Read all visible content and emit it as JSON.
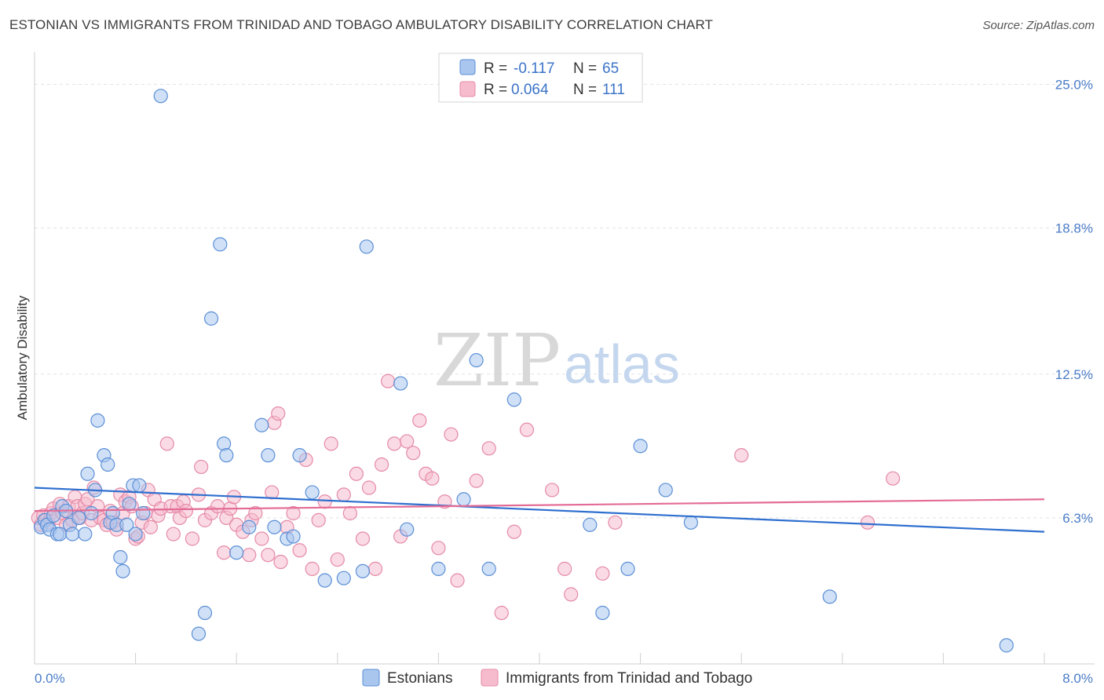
{
  "title": "ESTONIAN VS IMMIGRANTS FROM TRINIDAD AND TOBAGO AMBULATORY DISABILITY CORRELATION CHART",
  "source": "Source: ZipAtlas.com",
  "watermark": {
    "zip": "ZIP",
    "atlas": "atlas"
  },
  "colors": {
    "blue_fill": "#a9c6ee",
    "blue_stroke": "#5b8fd6",
    "blue_line": "#2f6fcf",
    "pink_fill": "#f6bccd",
    "pink_stroke": "#e58aa7",
    "pink_line": "#e36b96",
    "tick_text": "#4a7cc7",
    "grid": "#e2e2e2"
  },
  "legend": {
    "row1": {
      "r_label": "R =",
      "r_value": "-0.117",
      "n_label": "N =",
      "n_value": "65"
    },
    "row2": {
      "r_label": "R =",
      "r_value": "0.064",
      "n_label": "N =",
      "n_value": "111"
    }
  },
  "bottom_legend": {
    "series1": "Estonians",
    "series2": "Immigrants from Trinidad and Tobago"
  },
  "chart_data": {
    "type": "scatter",
    "title": "ESTONIAN VS IMMIGRANTS FROM TRINIDAD AND TOBAGO AMBULATORY DISABILITY CORRELATION CHART",
    "xlabel": "",
    "ylabel": "Ambulatory Disability",
    "xlim": [
      0.0,
      8.0
    ],
    "ylim": [
      0.0,
      26.0
    ],
    "x_tick_labels": [
      "0.0%",
      "8.0%"
    ],
    "y_ticks": [
      6.3,
      12.5,
      18.8,
      25.0
    ],
    "y_tick_labels": [
      "6.3%",
      "12.5%",
      "18.8%",
      "25.0%"
    ],
    "series": [
      {
        "name": "Estonians",
        "color": "#a9c6ee",
        "trend": {
          "x": [
            0.0,
            8.0
          ],
          "y": [
            7.6,
            5.7
          ]
        },
        "points": [
          [
            0.05,
            5.9
          ],
          [
            0.08,
            6.2
          ],
          [
            0.1,
            6.0
          ],
          [
            0.12,
            5.8
          ],
          [
            0.15,
            6.4
          ],
          [
            0.18,
            5.6
          ],
          [
            0.2,
            5.6
          ],
          [
            0.22,
            6.8
          ],
          [
            0.25,
            6.6
          ],
          [
            0.28,
            6.0
          ],
          [
            0.3,
            5.6
          ],
          [
            0.35,
            6.3
          ],
          [
            0.4,
            5.6
          ],
          [
            0.42,
            8.2
          ],
          [
            0.45,
            6.5
          ],
          [
            0.48,
            7.5
          ],
          [
            0.5,
            10.5
          ],
          [
            0.55,
            9.0
          ],
          [
            0.58,
            8.6
          ],
          [
            0.6,
            6.1
          ],
          [
            0.62,
            6.5
          ],
          [
            0.65,
            6.0
          ],
          [
            0.68,
            4.6
          ],
          [
            0.7,
            4.0
          ],
          [
            0.73,
            6.0
          ],
          [
            0.75,
            6.9
          ],
          [
            0.78,
            7.7
          ],
          [
            0.8,
            5.6
          ],
          [
            0.83,
            7.7
          ],
          [
            0.86,
            6.5
          ],
          [
            1.0,
            24.5
          ],
          [
            1.3,
            1.3
          ],
          [
            1.35,
            2.2
          ],
          [
            1.4,
            14.9
          ],
          [
            1.47,
            18.1
          ],
          [
            1.5,
            9.5
          ],
          [
            1.52,
            9.0
          ],
          [
            1.6,
            4.8
          ],
          [
            1.7,
            5.9
          ],
          [
            1.8,
            10.3
          ],
          [
            1.85,
            9.0
          ],
          [
            1.9,
            5.9
          ],
          [
            2.0,
            5.4
          ],
          [
            2.05,
            5.5
          ],
          [
            2.1,
            9.0
          ],
          [
            2.2,
            7.4
          ],
          [
            2.3,
            3.6
          ],
          [
            2.45,
            3.7
          ],
          [
            2.6,
            4.0
          ],
          [
            2.63,
            18.0
          ],
          [
            2.9,
            12.1
          ],
          [
            2.95,
            5.8
          ],
          [
            3.2,
            4.1
          ],
          [
            3.4,
            7.1
          ],
          [
            3.5,
            13.1
          ],
          [
            3.6,
            4.1
          ],
          [
            3.8,
            11.4
          ],
          [
            4.4,
            6.0
          ],
          [
            4.5,
            2.2
          ],
          [
            4.7,
            4.1
          ],
          [
            4.8,
            9.4
          ],
          [
            5.0,
            7.5
          ],
          [
            5.2,
            6.1
          ],
          [
            6.3,
            2.9
          ],
          [
            7.7,
            0.8
          ]
        ]
      },
      {
        "name": "Immigrants from Trinidad and Tobago",
        "color": "#f6bccd",
        "trend": {
          "x": [
            0.0,
            8.0
          ],
          "y": [
            6.6,
            7.1
          ]
        },
        "points": [
          [
            0.03,
            6.3
          ],
          [
            0.05,
            6.0
          ],
          [
            0.07,
            6.4
          ],
          [
            0.09,
            6.2
          ],
          [
            0.11,
            6.1
          ],
          [
            0.13,
            6.5
          ],
          [
            0.15,
            6.7
          ],
          [
            0.18,
            6.3
          ],
          [
            0.2,
            6.9
          ],
          [
            0.22,
            6.5
          ],
          [
            0.25,
            6.0
          ],
          [
            0.27,
            6.8
          ],
          [
            0.3,
            6.2
          ],
          [
            0.32,
            7.2
          ],
          [
            0.34,
            6.8
          ],
          [
            0.36,
            6.3
          ],
          [
            0.38,
            6.5
          ],
          [
            0.4,
            6.9
          ],
          [
            0.42,
            7.1
          ],
          [
            0.45,
            6.2
          ],
          [
            0.47,
            7.6
          ],
          [
            0.5,
            6.8
          ],
          [
            0.52,
            6.3
          ],
          [
            0.55,
            6.2
          ],
          [
            0.57,
            6.0
          ],
          [
            0.6,
            6.6
          ],
          [
            0.62,
            6.1
          ],
          [
            0.65,
            5.8
          ],
          [
            0.68,
            7.3
          ],
          [
            0.7,
            6.5
          ],
          [
            0.72,
            7.0
          ],
          [
            0.75,
            7.2
          ],
          [
            0.77,
            6.8
          ],
          [
            0.8,
            5.4
          ],
          [
            0.82,
            5.5
          ],
          [
            0.85,
            6.1
          ],
          [
            0.88,
            6.5
          ],
          [
            0.9,
            7.5
          ],
          [
            0.92,
            5.9
          ],
          [
            0.95,
            7.1
          ],
          [
            0.98,
            6.4
          ],
          [
            1.0,
            6.7
          ],
          [
            1.05,
            9.5
          ],
          [
            1.08,
            6.8
          ],
          [
            1.1,
            5.6
          ],
          [
            1.13,
            6.8
          ],
          [
            1.15,
            6.3
          ],
          [
            1.18,
            7.0
          ],
          [
            1.2,
            6.6
          ],
          [
            1.25,
            5.4
          ],
          [
            1.3,
            7.3
          ],
          [
            1.32,
            8.5
          ],
          [
            1.35,
            6.2
          ],
          [
            1.4,
            6.5
          ],
          [
            1.45,
            6.8
          ],
          [
            1.5,
            4.8
          ],
          [
            1.52,
            6.3
          ],
          [
            1.55,
            6.7
          ],
          [
            1.58,
            7.2
          ],
          [
            1.6,
            6.0
          ],
          [
            1.65,
            5.7
          ],
          [
            1.7,
            4.7
          ],
          [
            1.72,
            6.2
          ],
          [
            1.75,
            6.5
          ],
          [
            1.8,
            5.4
          ],
          [
            1.85,
            4.7
          ],
          [
            1.88,
            7.4
          ],
          [
            1.9,
            10.4
          ],
          [
            1.93,
            10.8
          ],
          [
            1.95,
            4.4
          ],
          [
            2.0,
            5.9
          ],
          [
            2.05,
            6.5
          ],
          [
            2.1,
            4.9
          ],
          [
            2.15,
            8.8
          ],
          [
            2.2,
            4.1
          ],
          [
            2.25,
            6.2
          ],
          [
            2.3,
            7.0
          ],
          [
            2.35,
            9.5
          ],
          [
            2.4,
            4.5
          ],
          [
            2.45,
            7.3
          ],
          [
            2.5,
            6.5
          ],
          [
            2.55,
            8.2
          ],
          [
            2.6,
            5.4
          ],
          [
            2.65,
            7.6
          ],
          [
            2.7,
            4.1
          ],
          [
            2.75,
            8.6
          ],
          [
            2.8,
            12.2
          ],
          [
            2.85,
            9.5
          ],
          [
            2.9,
            5.5
          ],
          [
            2.95,
            9.6
          ],
          [
            3.0,
            9.1
          ],
          [
            3.05,
            10.5
          ],
          [
            3.1,
            8.2
          ],
          [
            3.15,
            8.0
          ],
          [
            3.2,
            5.0
          ],
          [
            3.25,
            7.0
          ],
          [
            3.3,
            9.9
          ],
          [
            3.35,
            3.6
          ],
          [
            3.5,
            7.9
          ],
          [
            3.6,
            9.3
          ],
          [
            3.7,
            2.2
          ],
          [
            3.8,
            5.7
          ],
          [
            3.9,
            10.1
          ],
          [
            4.1,
            7.5
          ],
          [
            4.2,
            4.1
          ],
          [
            4.25,
            3.0
          ],
          [
            4.5,
            3.9
          ],
          [
            4.6,
            6.1
          ],
          [
            5.6,
            9.0
          ],
          [
            6.6,
            6.1
          ],
          [
            6.8,
            8.0
          ]
        ]
      }
    ]
  }
}
